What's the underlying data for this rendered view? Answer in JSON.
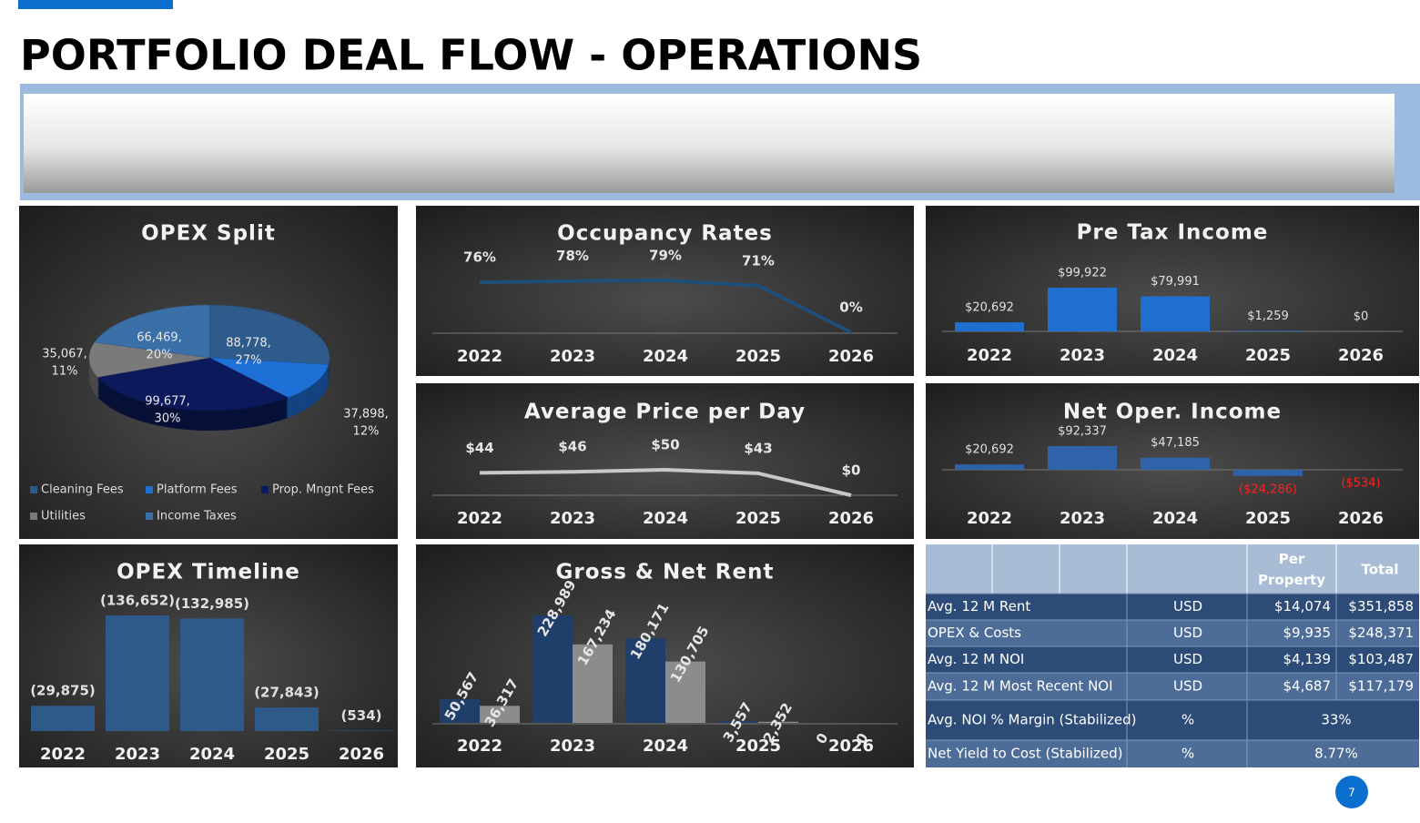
{
  "title": "PORTFOLIO DEAL FLOW - OPERATIONS",
  "page_number": "7",
  "chart_data": [
    {
      "type": "pie",
      "title": "OPEX Split",
      "categories": [
        "Cleaning Fees",
        "Platform Fees",
        "Prop. Mngnt Fees",
        "Utilities",
        "Income Taxes"
      ],
      "values": [
        88778,
        37898,
        99677,
        35067,
        66469
      ],
      "value_labels": [
        [
          "88,778,",
          "27%"
        ],
        [
          "37,898,",
          "12%"
        ],
        [
          "99,677,",
          "30%"
        ],
        [
          "35,067,",
          "11%"
        ],
        [
          "66,469,",
          "20%"
        ]
      ],
      "colors": [
        "#2f5b8c",
        "#1f70d6",
        "#0c1a5c",
        "#7a7a7a",
        "#3b6fa8"
      ],
      "legend": "bottom"
    },
    {
      "type": "line",
      "title": "Occupancy Rates",
      "categories": [
        "2022",
        "2023",
        "2024",
        "2025",
        "2026"
      ],
      "values": [
        76,
        78,
        79,
        71,
        0
      ],
      "value_labels": [
        "76%",
        "78%",
        "79%",
        "71%",
        "0%"
      ],
      "color": "#1f4e79"
    },
    {
      "type": "bar",
      "title": "Pre Tax Income",
      "categories": [
        "2022",
        "2023",
        "2024",
        "2025",
        "2026"
      ],
      "values": [
        20692,
        99922,
        79991,
        1259,
        0
      ],
      "value_labels": [
        "$20,692",
        "$99,922",
        "$79,991",
        "$1,259",
        "$0"
      ],
      "color": "#1f6fd1"
    },
    {
      "type": "line",
      "title": "Average Price per Day",
      "categories": [
        "2022",
        "2023",
        "2024",
        "2025",
        "2026"
      ],
      "values": [
        44,
        46,
        50,
        43,
        0
      ],
      "value_labels": [
        "$44",
        "$46",
        "$50",
        "$43",
        "$0"
      ],
      "color": "#c8c8c8"
    },
    {
      "type": "bar",
      "title": "Net Oper. Income",
      "categories": [
        "2022",
        "2023",
        "2024",
        "2025",
        "2026"
      ],
      "values": [
        20692,
        92337,
        47185,
        -24286,
        -534
      ],
      "value_labels": [
        "$20,692",
        "$92,337",
        "$47,185",
        "($24,286)",
        "($534)"
      ],
      "color": "#2f62a8",
      "negative_label_color": "#ff2020"
    },
    {
      "type": "bar",
      "title": "OPEX Timeline",
      "categories": [
        "2022",
        "2023",
        "2024",
        "2025",
        "2026"
      ],
      "values": [
        -29875,
        -136652,
        -132985,
        -27843,
        -534
      ],
      "value_labels": [
        "(29,875)",
        "(136,652)",
        "(132,985)",
        "(27,843)",
        "(534)"
      ],
      "color": "#2e5a8a"
    },
    {
      "type": "bar",
      "title": "Gross & Net Rent",
      "categories": [
        "2022",
        "2023",
        "2024",
        "2025",
        "2026"
      ],
      "series": [
        {
          "color": "#1f3f6a",
          "values": [
            50567,
            228989,
            180171,
            3557,
            0
          ],
          "value_labels": [
            "50,567",
            "228,989",
            "180,171",
            "3,557",
            "0"
          ]
        },
        {
          "color": "#8c8c8c",
          "values": [
            36317,
            167234,
            130705,
            2352,
            0
          ],
          "value_labels": [
            "36,317",
            "167,234",
            "130,705",
            "2,352",
            "0"
          ]
        }
      ]
    }
  ],
  "table": {
    "columns": [
      "Per Property",
      "Total"
    ],
    "rows": [
      {
        "label": "Avg.  12 M Rent",
        "unit": "USD",
        "values": [
          "$14,074",
          "$351,858"
        ]
      },
      {
        "label": "OPEX & Costs",
        "unit": "USD",
        "values": [
          "$9,935",
          "$248,371"
        ]
      },
      {
        "label": "Avg.  12 M NOI",
        "unit": "USD",
        "values": [
          "$4,139",
          "$103,487"
        ]
      },
      {
        "label": "Avg.  12 M Most Recent NOI",
        "unit": "USD",
        "values": [
          "$4,687",
          "$117,179"
        ]
      },
      {
        "label": "Avg. NOI % Margin (Stabilized)",
        "unit": "%",
        "values": [
          "33%"
        ]
      },
      {
        "label": "Net Yield to Cost (Stabilized)",
        "unit": "%",
        "values": [
          "8.77%"
        ]
      }
    ]
  }
}
